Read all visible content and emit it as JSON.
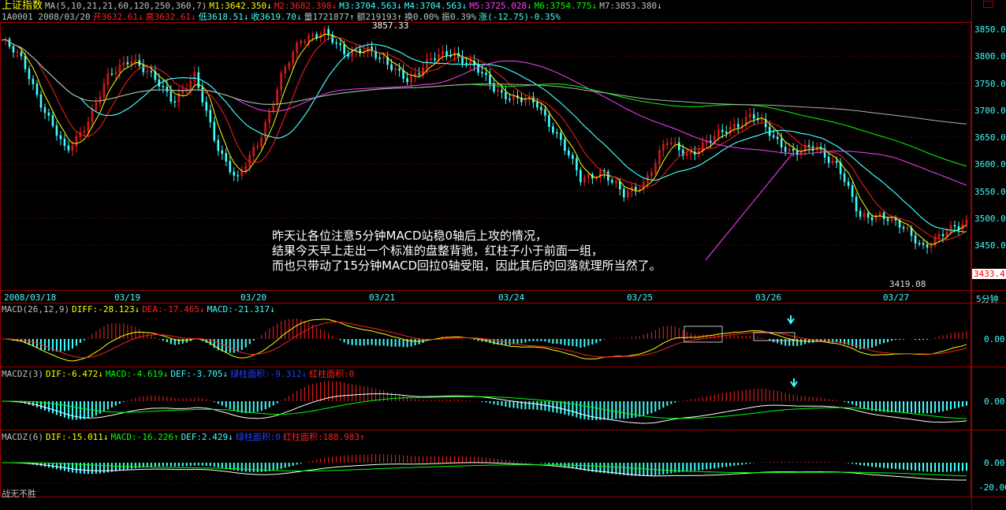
{
  "header": {
    "title": "上证指数",
    "ma_params": "MA(5,10,21,21,60,120,250,360,7)",
    "ma": [
      {
        "t": "M1:3642.350↓",
        "c": "y"
      },
      {
        "t": "M2:3682.398↓",
        "c": "r"
      },
      {
        "t": "M3:3704.563↓",
        "c": "c"
      },
      {
        "t": "M4:3704.563↓",
        "c": "c"
      },
      {
        "t": "M5:3725.028↓",
        "c": "m"
      },
      {
        "t": "M6:3754.775↓",
        "c": "g"
      },
      {
        "t": "M7:3853.380↓",
        "c": "w"
      }
    ],
    "quote": [
      {
        "t": "1A0001 2008/03/20",
        "c": "w"
      },
      {
        "t": "开3632.61↓",
        "c": "r"
      },
      {
        "t": "高3632.61↓",
        "c": "r"
      },
      {
        "t": "低3618.51↓",
        "c": "c"
      },
      {
        "t": "收3619.70↓",
        "c": "c"
      },
      {
        "t": "量1721877↑",
        "c": "w"
      },
      {
        "t": "额219193↑",
        "c": "w"
      },
      {
        "t": "换0.00%",
        "c": "w"
      },
      {
        "t": "振0.39%",
        "c": "w"
      },
      {
        "t": "涨(-12.75)-0.35%",
        "c": "c"
      }
    ]
  },
  "price_axis": [
    "3850.0",
    "3800.0",
    "3750.0",
    "3700.0",
    "3650.0",
    "3600.0",
    "3550.0",
    "3500.0",
    "3450.0"
  ],
  "current_price": "3433.4",
  "high_label": "3857.33",
  "low_label": "3419.08",
  "dates": [
    "2008/03/18",
    "03/19",
    "03/20",
    "03/21",
    "03/24",
    "03/25",
    "03/26",
    "03/27"
  ],
  "period": "5分钟",
  "annotation": [
    "昨天让各位注意5分钟MACD站稳0轴后上攻的情况，",
    "结果今天早上走出一个标准的盘整背驰，红柱子小于前面一组，",
    "而也只带动了15分钟MACD回拉0轴受阻，因此其后的回落就理所当然了。"
  ],
  "macd": {
    "label": "MACD(26,12,9)",
    "items": [
      {
        "t": "DIFF:-28.123↓",
        "c": "y"
      },
      {
        "t": "DEA:-17.465↓",
        "c": "r"
      },
      {
        "t": "MACD:-21.317↓",
        "c": "c"
      }
    ],
    "axis": "0.00"
  },
  "macdz3": {
    "label": "MACDZ(3)",
    "items": [
      {
        "t": "DIF:-6.472↓",
        "c": "y"
      },
      {
        "t": "MACD:-4.619↓",
        "c": "g"
      },
      {
        "t": "DEF:-3.705↓",
        "c": "c"
      },
      {
        "t": "绿柱面积:-9.312↓",
        "c": "b"
      },
      {
        "t": "红柱面积:0",
        "c": "r"
      }
    ],
    "axis": "0.00"
  },
  "macdz6": {
    "label": "MACDZ(6)",
    "items": [
      {
        "t": "DIF:-15.011↓",
        "c": "y"
      },
      {
        "t": "MACD:-16.226↑",
        "c": "g"
      },
      {
        "t": "DEF:2.429↓",
        "c": "c"
      },
      {
        "t": "绿柱面积:0",
        "c": "b"
      },
      {
        "t": "红柱面积:188.983↑",
        "c": "r"
      }
    ],
    "axis": [
      "0.00",
      "-20.00"
    ]
  },
  "footer": "战无不胜",
  "chart_data": {
    "type": "line",
    "x": "5-minute bars 2008/03/18 – 03/27",
    "closes": [
      3830,
      3790,
      3700,
      3620,
      3680,
      3760,
      3800,
      3760,
      3720,
      3760,
      3640,
      3570,
      3640,
      3760,
      3830,
      3850,
      3800,
      3820,
      3780,
      3760,
      3790,
      3810,
      3780,
      3740,
      3720,
      3710,
      3650,
      3570,
      3590,
      3540,
      3570,
      3640,
      3620,
      3640,
      3670,
      3690,
      3650,
      3620,
      3630,
      3600,
      3500,
      3510,
      3480,
      3450,
      3470,
      3495
    ],
    "ylim": [
      3419,
      3857
    ],
    "colors": {
      "ma": [
        "#ffff00",
        "#ff2020",
        "#40ffff",
        "#40ffff",
        "#ff40ff",
        "#00ff00",
        "#b0b0b0"
      ],
      "up": "#ff2020",
      "down": "#40ffff",
      "grid": "#a00000"
    }
  }
}
